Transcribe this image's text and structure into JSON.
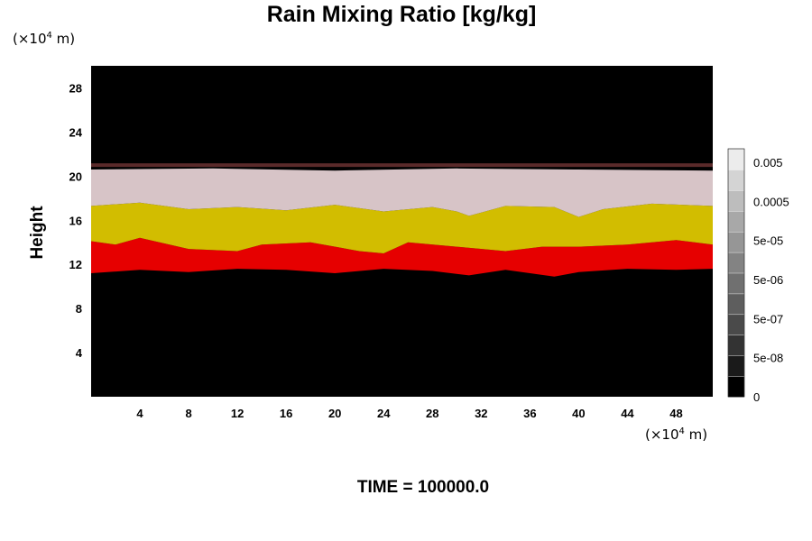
{
  "chart_data": {
    "type": "heatmap",
    "title": "Rain Mixing Ratio [kg/kg]",
    "ylabel": "Height",
    "xlabel": "",
    "x_unit": {
      "prefix": "(×10",
      "exp": "4",
      "suffix": " m)"
    },
    "y_unit": {
      "prefix": "(×10",
      "exp": "4",
      "suffix": " m)"
    },
    "xlim": [
      0,
      51
    ],
    "ylim": [
      0,
      30
    ],
    "x_ticks": [
      4,
      8,
      12,
      16,
      20,
      24,
      28,
      32,
      36,
      40,
      44,
      48
    ],
    "y_ticks": [
      4,
      8,
      12,
      16,
      20,
      24,
      28
    ],
    "footer": "TIME = 100000.0",
    "background_color": "#000000",
    "bands": [
      {
        "name": "red",
        "color": "#e60000",
        "lower": [
          [
            0,
            11.2
          ],
          [
            4,
            11.5
          ],
          [
            8,
            11.3
          ],
          [
            12,
            11.6
          ],
          [
            16,
            11.5
          ],
          [
            20,
            11.2
          ],
          [
            24,
            11.6
          ],
          [
            28,
            11.4
          ],
          [
            31,
            11.0
          ],
          [
            34,
            11.5
          ],
          [
            38,
            10.9
          ],
          [
            40,
            11.3
          ],
          [
            44,
            11.6
          ],
          [
            48,
            11.5
          ],
          [
            51,
            11.6
          ]
        ],
        "upper": [
          [
            0,
            14.1
          ],
          [
            2,
            13.8
          ],
          [
            4,
            14.4
          ],
          [
            8,
            13.4
          ],
          [
            12,
            13.2
          ],
          [
            14,
            13.8
          ],
          [
            18,
            14.0
          ],
          [
            22,
            13.2
          ],
          [
            24,
            13.0
          ],
          [
            26,
            14.0
          ],
          [
            30,
            13.6
          ],
          [
            34,
            13.2
          ],
          [
            37,
            13.6
          ],
          [
            40,
            13.6
          ],
          [
            44,
            13.8
          ],
          [
            48,
            14.2
          ],
          [
            51,
            13.8
          ]
        ]
      },
      {
        "name": "yellow",
        "color": "#d2bd00",
        "lower": [
          [
            0,
            14.1
          ],
          [
            2,
            13.8
          ],
          [
            4,
            14.4
          ],
          [
            8,
            13.4
          ],
          [
            12,
            13.2
          ],
          [
            14,
            13.8
          ],
          [
            18,
            14.0
          ],
          [
            22,
            13.2
          ],
          [
            24,
            13.0
          ],
          [
            26,
            14.0
          ],
          [
            30,
            13.6
          ],
          [
            34,
            13.2
          ],
          [
            37,
            13.6
          ],
          [
            40,
            13.6
          ],
          [
            44,
            13.8
          ],
          [
            48,
            14.2
          ],
          [
            51,
            13.8
          ]
        ],
        "upper": [
          [
            0,
            17.3
          ],
          [
            4,
            17.6
          ],
          [
            8,
            17.0
          ],
          [
            12,
            17.2
          ],
          [
            16,
            16.9
          ],
          [
            20,
            17.4
          ],
          [
            24,
            16.8
          ],
          [
            28,
            17.2
          ],
          [
            30,
            16.8
          ],
          [
            31,
            16.4
          ],
          [
            32,
            16.7
          ],
          [
            34,
            17.3
          ],
          [
            38,
            17.2
          ],
          [
            40,
            16.3
          ],
          [
            42,
            17.0
          ],
          [
            46,
            17.5
          ],
          [
            51,
            17.3
          ]
        ]
      },
      {
        "name": "pink",
        "color": "#d7c4c7",
        "lower": [
          [
            0,
            17.3
          ],
          [
            4,
            17.6
          ],
          [
            8,
            17.0
          ],
          [
            12,
            17.2
          ],
          [
            16,
            16.9
          ],
          [
            20,
            17.4
          ],
          [
            24,
            16.8
          ],
          [
            28,
            17.2
          ],
          [
            30,
            16.8
          ],
          [
            31,
            16.4
          ],
          [
            32,
            16.7
          ],
          [
            34,
            17.3
          ],
          [
            38,
            17.2
          ],
          [
            40,
            16.3
          ],
          [
            42,
            17.0
          ],
          [
            46,
            17.5
          ],
          [
            51,
            17.3
          ]
        ],
        "upper": [
          [
            0,
            20.6
          ],
          [
            10,
            20.7
          ],
          [
            20,
            20.5
          ],
          [
            30,
            20.7
          ],
          [
            40,
            20.6
          ],
          [
            51,
            20.5
          ]
        ]
      }
    ],
    "top_edge": {
      "color": "#5a2a2a",
      "y": 21.0
    },
    "colorbar": {
      "labels": [
        "0.005",
        "0.0005",
        "5e-05",
        "5e-06",
        "5e-07",
        "5e-08",
        "0"
      ],
      "gradient": [
        "#000000",
        "#1a1a1a",
        "#333333",
        "#4a4a4a",
        "#5e5e5e",
        "#707070",
        "#838383",
        "#969696",
        "#a8a8a8",
        "#bdbdbd",
        "#d4d4d4",
        "#ececec"
      ]
    }
  }
}
